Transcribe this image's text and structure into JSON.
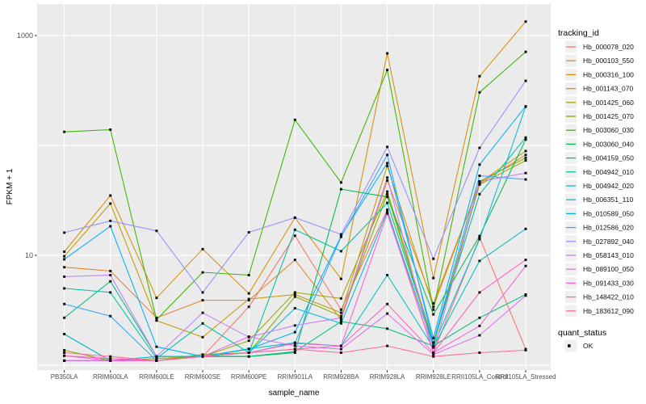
{
  "figure": {
    "background": "#FFFFFF",
    "panel_bg": "#EBEBEB",
    "grid_color": "#FFFFFF",
    "tick_color": "#333333",
    "tick_label_color": "#4D4D4D",
    "point_color": "#111111",
    "legend_key_bg": "#F0F0F0"
  },
  "chart_data": {
    "type": "line",
    "title": "",
    "xlabel": "sample_name",
    "ylabel": "FPKM + 1",
    "yscale": "log10",
    "ylim": [
      0.9,
      1900
    ],
    "yticks": [
      1000,
      10
    ],
    "ytick_labels": [
      "1000",
      "10"
    ],
    "grid_y_values": [
      1,
      10,
      100,
      1000
    ],
    "legend_title": "tracking_id",
    "legend2_title": "quant_status",
    "legend2_items": [
      "OK"
    ],
    "legend_position": "right",
    "categories": [
      "PB350LA",
      "RRIM600LA",
      "RRIM600LE",
      "RRIM600SE",
      "RRIM600PE",
      "RRIM901LA",
      "RRIM928BA",
      "RRIM928LA",
      "RRIM928LE",
      "RRII105LA_Control",
      "RRII105LA_Stressed"
    ],
    "series": [
      {
        "name": "Hb_000078_020",
        "color": "#F8766D",
        "values": [
          1.1,
          1.1,
          1.1,
          1.2,
          3.4,
          15.1,
          3.2,
          26,
          1.3,
          14.5,
          1.4
        ]
      },
      {
        "name": "Hb_000103_550",
        "color": "#E8842A",
        "values": [
          7.8,
          7.2,
          2.7,
          3.9,
          3.9,
          9.1,
          2.6,
          48,
          3.65,
          45,
          82
        ]
      },
      {
        "name": "Hb_000316_100",
        "color": "#D89000",
        "values": [
          10.8,
          35,
          4.1,
          11.4,
          4.5,
          22,
          6.1,
          689,
          6.2,
          427,
          1340
        ]
      },
      {
        "name": "Hb_001143_070",
        "color": "#C49A00",
        "values": [
          9.8,
          29.6,
          2.55,
          1.8,
          4.0,
          4.4,
          3.0,
          65,
          3.4,
          46,
          89
        ]
      },
      {
        "name": "Hb_001425_060",
        "color": "#A3A500",
        "values": [
          1.92,
          1.1,
          1.15,
          1.2,
          1.67,
          4.6,
          4.05,
          38,
          1.6,
          44,
          73
        ]
      },
      {
        "name": "Hb_001425_070",
        "color": "#7CAE00",
        "values": [
          1.37,
          1.1,
          1.1,
          1.25,
          1.3,
          4.2,
          2.8,
          36,
          1.5,
          47,
          77
        ]
      },
      {
        "name": "Hb_003060_030",
        "color": "#39B600",
        "values": [
          133,
          139,
          2.6,
          7.0,
          6.6,
          171,
          46,
          486,
          3.2,
          304,
          710
        ]
      },
      {
        "name": "Hb_003060_040",
        "color": "#00BB4E",
        "values": [
          1.1,
          1.1,
          1.1,
          1.2,
          1.2,
          1.3,
          40,
          34,
          2.9,
          15,
          113
        ]
      },
      {
        "name": "Hb_004159_050",
        "color": "#00BF7D",
        "values": [
          2.7,
          5.8,
          1.2,
          1.2,
          1.2,
          1.33,
          2.5,
          2.15,
          1.5,
          2.7,
          4.4
        ]
      },
      {
        "name": "Hb_004942_010",
        "color": "#00C1A3",
        "values": [
          5.0,
          4.6,
          1.15,
          2.4,
          1.3,
          17.1,
          10.9,
          30,
          1.6,
          36,
          118
        ]
      },
      {
        "name": "Hb_004942_020",
        "color": "#00BFC4",
        "values": [
          1.1,
          1.1,
          1.1,
          1.2,
          1.41,
          1.6,
          1.5,
          6.6,
          1.45,
          8.9,
          17.4
        ]
      },
      {
        "name": "Hb_006351_110",
        "color": "#00BAE0",
        "values": [
          1.92,
          1.1,
          1.2,
          1.2,
          1.3,
          3.3,
          2.4,
          25,
          1.5,
          14,
          225
        ]
      },
      {
        "name": "Hb_010589_050",
        "color": "#00B0F6",
        "values": [
          9.2,
          18.4,
          1.47,
          1.2,
          1.4,
          2.0,
          15.0,
          69,
          1.77,
          67,
          227
        ]
      },
      {
        "name": "Hb_012586_020",
        "color": "#35A2FF",
        "values": [
          3.6,
          2.8,
          1.1,
          1.2,
          1.3,
          1.6,
          14.7,
          82,
          1.6,
          53,
          49
        ]
      },
      {
        "name": "Hb_027892_040",
        "color": "#9590FF",
        "values": [
          16.1,
          20.6,
          16.7,
          4.6,
          16.2,
          22,
          15.5,
          97,
          9.3,
          95,
          387
        ]
      },
      {
        "name": "Hb_058143_010",
        "color": "#C77CFF",
        "values": [
          6.4,
          6.6,
          1.2,
          3.0,
          1.8,
          2.3,
          2.7,
          51,
          1.3,
          47,
          56
        ]
      },
      {
        "name": "Hb_089100_050",
        "color": "#E76BF3",
        "values": [
          1.1,
          1.1,
          1.1,
          1.2,
          1.82,
          1.5,
          1.4,
          2.95,
          1.25,
          1.87,
          4.3
        ]
      },
      {
        "name": "Hb_091433_030",
        "color": "#FA62DB",
        "values": [
          1.22,
          1.1,
          1.1,
          1.2,
          1.3,
          1.4,
          1.5,
          24,
          1.3,
          2.28,
          8.0
        ]
      },
      {
        "name": "Hb_148422_010",
        "color": "#FF62BC",
        "values": [
          1.22,
          1.15,
          1.1,
          1.2,
          1.3,
          1.58,
          1.5,
          3.6,
          1.3,
          4.6,
          9.1
        ]
      },
      {
        "name": "Hb_183612_090",
        "color": "#FF6A98",
        "values": [
          1.3,
          1.2,
          1.1,
          1.2,
          1.3,
          1.4,
          1.3,
          1.5,
          1.2,
          1.3,
          1.37
        ]
      }
    ]
  }
}
